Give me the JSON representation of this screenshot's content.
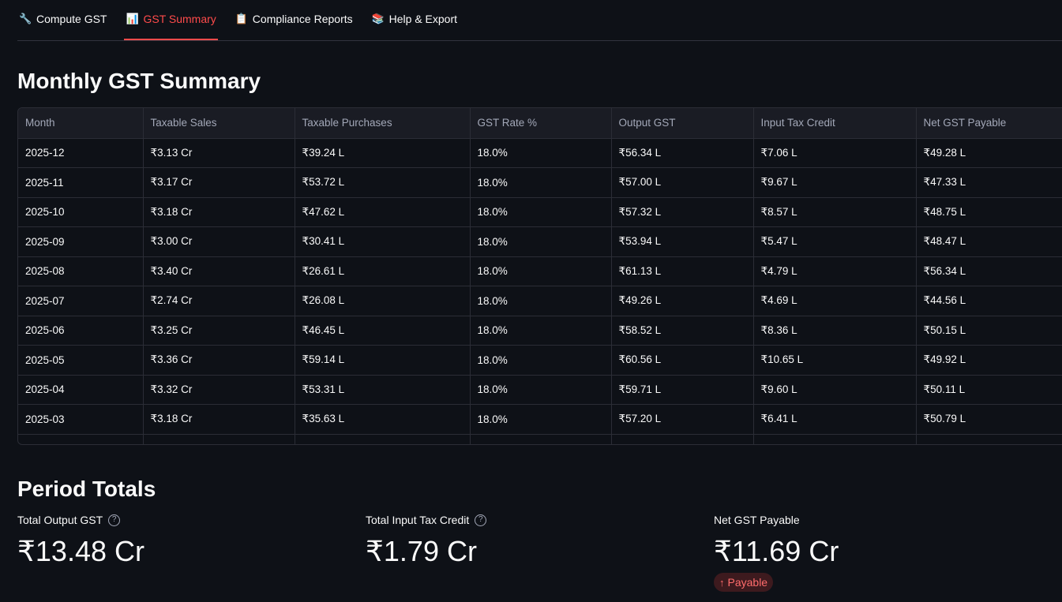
{
  "tabs": [
    {
      "icon": "🔧",
      "label": "Compute GST",
      "active": false
    },
    {
      "icon": "📊",
      "label": "GST Summary",
      "active": true
    },
    {
      "icon": "📋",
      "label": "Compliance Reports",
      "active": false
    },
    {
      "icon": "📚",
      "label": "Help & Export",
      "active": false
    }
  ],
  "summary": {
    "title": "Monthly GST Summary",
    "columns": [
      "Month",
      "Taxable Sales",
      "Taxable Purchases",
      "GST Rate %",
      "Output GST",
      "Input Tax Credit",
      "Net GST Payable"
    ],
    "rows": [
      [
        "2025-12",
        "₹3.13 Cr",
        "₹39.24 L",
        "18.0%",
        "₹56.34 L",
        "₹7.06 L",
        "₹49.28 L"
      ],
      [
        "2025-11",
        "₹3.17 Cr",
        "₹53.72 L",
        "18.0%",
        "₹57.00 L",
        "₹9.67 L",
        "₹47.33 L"
      ],
      [
        "2025-10",
        "₹3.18 Cr",
        "₹47.62 L",
        "18.0%",
        "₹57.32 L",
        "₹8.57 L",
        "₹48.75 L"
      ],
      [
        "2025-09",
        "₹3.00 Cr",
        "₹30.41 L",
        "18.0%",
        "₹53.94 L",
        "₹5.47 L",
        "₹48.47 L"
      ],
      [
        "2025-08",
        "₹3.40 Cr",
        "₹26.61 L",
        "18.0%",
        "₹61.13 L",
        "₹4.79 L",
        "₹56.34 L"
      ],
      [
        "2025-07",
        "₹2.74 Cr",
        "₹26.08 L",
        "18.0%",
        "₹49.26 L",
        "₹4.69 L",
        "₹44.56 L"
      ],
      [
        "2025-06",
        "₹3.25 Cr",
        "₹46.45 L",
        "18.0%",
        "₹58.52 L",
        "₹8.36 L",
        "₹50.15 L"
      ],
      [
        "2025-05",
        "₹3.36 Cr",
        "₹59.14 L",
        "18.0%",
        "₹60.56 L",
        "₹10.65 L",
        "₹49.92 L"
      ],
      [
        "2025-04",
        "₹3.32 Cr",
        "₹53.31 L",
        "18.0%",
        "₹59.71 L",
        "₹9.60 L",
        "₹50.11 L"
      ],
      [
        "2025-03",
        "₹3.18 Cr",
        "₹35.63 L",
        "18.0%",
        "₹57.20 L",
        "₹6.41 L",
        "₹50.79 L"
      ]
    ]
  },
  "totals": {
    "title": "Period Totals",
    "metrics": [
      {
        "label": "Total Output GST",
        "value": "₹13.48 Cr",
        "help_icon": "help-circle-icon"
      },
      {
        "label": "Total Input Tax Credit",
        "value": "₹1.79 Cr",
        "help_icon": "help-circle-icon"
      },
      {
        "label": "Net GST Payable",
        "value": "₹11.69 Cr",
        "delta": "Payable",
        "delta_icon": "arrow-up-icon"
      }
    ]
  },
  "colors": {
    "background": "#0e1117",
    "accent": "#ff4b4b",
    "delta_bg": "#3d1a1e"
  }
}
